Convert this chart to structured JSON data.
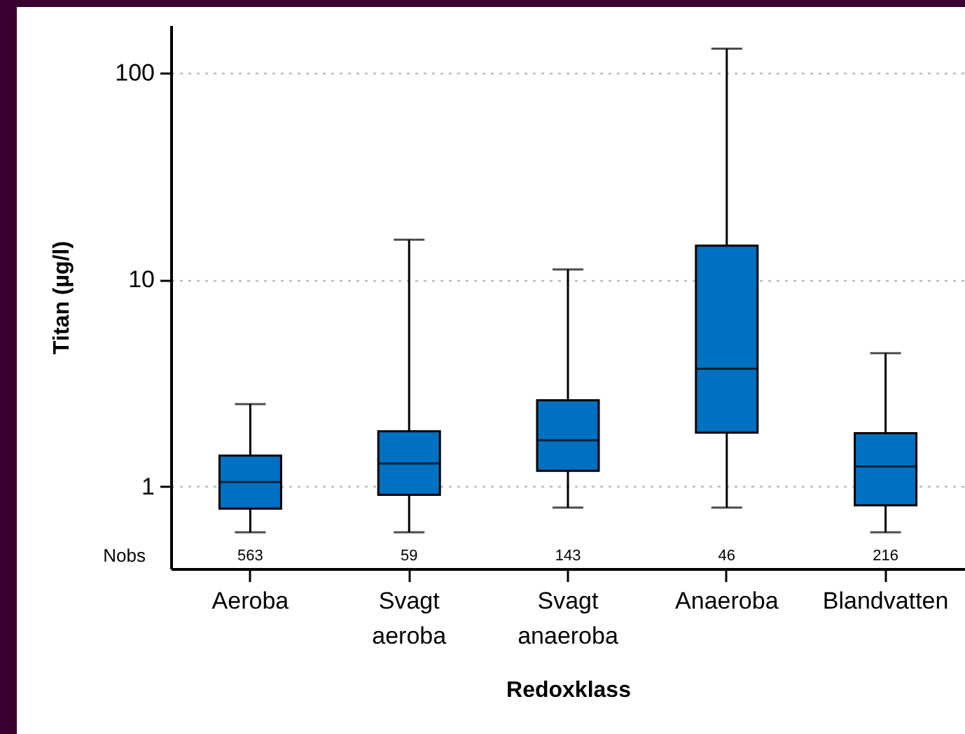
{
  "chart_data": {
    "type": "box",
    "xlabel": "Redoxklass",
    "ylabel": "Titan (µg/l)",
    "categories": [
      "Aeroba",
      "Svagt aeroba",
      "Svagt anaeroba",
      "Anaeroba",
      "Blandvatten"
    ],
    "boxes": [
      {
        "low": 0.6,
        "q1": 0.78,
        "median": 1.05,
        "q3": 1.41,
        "high": 2.5
      },
      {
        "low": 0.6,
        "q1": 0.91,
        "median": 1.29,
        "q3": 1.85,
        "high": 15.6
      },
      {
        "low": 0.79,
        "q1": 1.19,
        "median": 1.67,
        "q3": 2.61,
        "high": 11.2
      },
      {
        "low": 0.79,
        "q1": 1.82,
        "median": 3.71,
        "q3": 14.6,
        "high": 131
      },
      {
        "low": 0.6,
        "q1": 0.81,
        "median": 1.25,
        "q3": 1.81,
        "high": 4.41
      }
    ],
    "color": "#0070c0",
    "log": true,
    "ylim": [
      0.4,
      170
    ],
    "yticks": [
      1,
      10,
      100
    ],
    "grid": "y",
    "annotations": [
      "Nobs",
      "563",
      "59",
      "143",
      "46",
      "216"
    ]
  }
}
